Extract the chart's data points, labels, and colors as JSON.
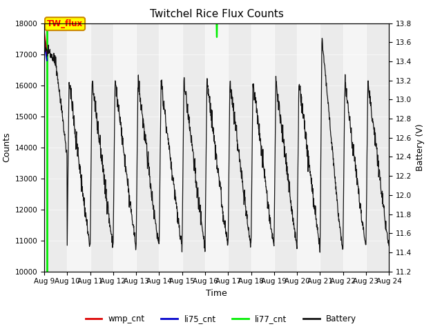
{
  "title": "Twitchel Rice Flux Counts",
  "xlabel": "Time",
  "ylabel_left": "Counts",
  "ylabel_right": "Battery (V)",
  "ylim_left": [
    10000,
    18000
  ],
  "ylim_right": [
    11.2,
    13.8
  ],
  "xtick_labels": [
    "Aug 9",
    "Aug 10",
    "Aug 11",
    "Aug 12",
    "Aug 13",
    "Aug 14",
    "Aug 15",
    "Aug 16",
    "Aug 17",
    "Aug 18",
    "Aug 19",
    "Aug 20",
    "Aug 21",
    "Aug 22",
    "Aug 23",
    "Aug 24"
  ],
  "yticks_left": [
    10000,
    11000,
    12000,
    13000,
    14000,
    15000,
    16000,
    17000,
    18000
  ],
  "yticks_right": [
    11.2,
    11.4,
    11.6,
    11.8,
    12.0,
    12.2,
    12.4,
    12.6,
    12.8,
    13.0,
    13.2,
    13.4,
    13.6,
    13.8
  ],
  "annotation_text": "TW_flux",
  "li77_color": "#00ee00",
  "wmp_color": "#dd0000",
  "li75_color": "#0000cc",
  "battery_color": "#111111",
  "bg_light": "#ebebeb",
  "bg_dark": "#d8d8d8",
  "legend_entries": [
    "wmp_cnt",
    "li75_cnt",
    "li77_cnt",
    "Battery"
  ],
  "legend_colors": [
    "#dd0000",
    "#0000cc",
    "#00ee00",
    "#111111"
  ],
  "n_days": 15,
  "n_per_day": 96
}
